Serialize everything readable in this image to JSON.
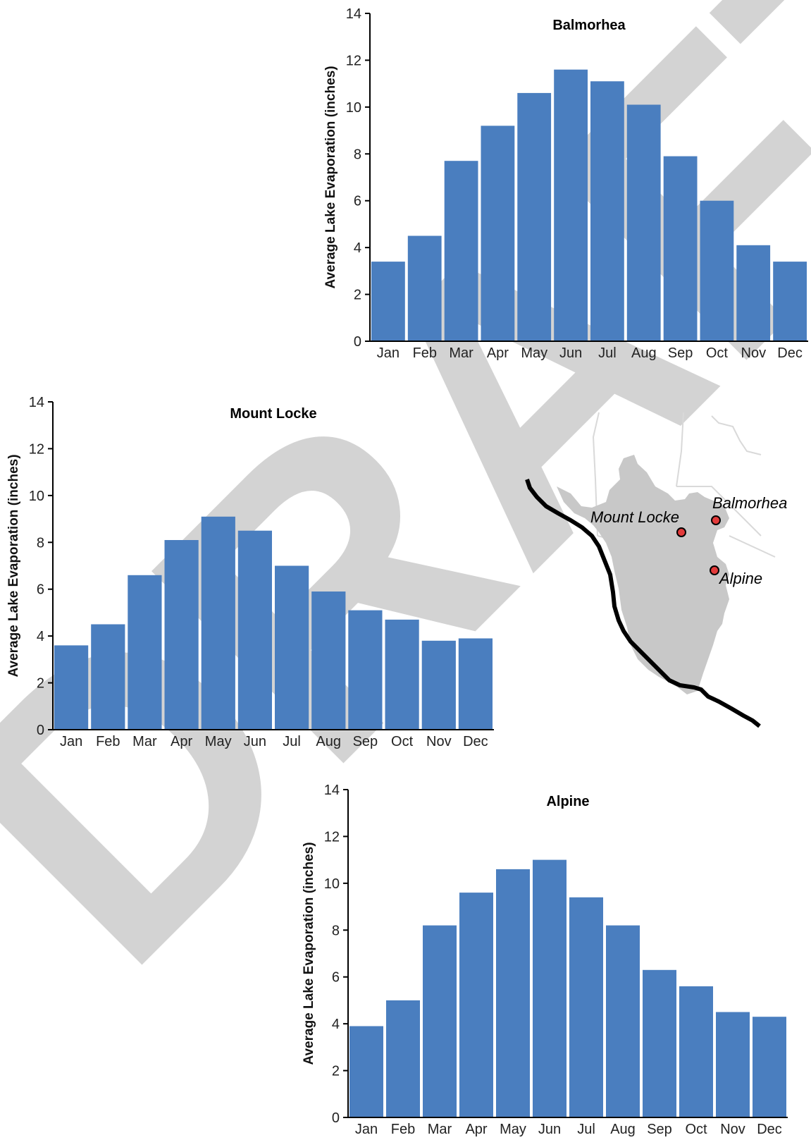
{
  "watermark": "DRAFT",
  "colors": {
    "bar": "#4a7ebf",
    "axis": "#000000",
    "map_land": "#c8c8c8",
    "map_border": "#d9d9d9",
    "river": "#000000",
    "marker_fill": "#e23b3b",
    "watermark": "#d3d3d3"
  },
  "map": {
    "labels": {
      "mount_locke": "Mount Locke",
      "balmorhea": "Balmorhea",
      "alpine": "Alpine"
    }
  },
  "chart_data": [
    {
      "id": "balmorhea",
      "type": "bar",
      "title": "Balmorhea",
      "xlabel": "",
      "ylabel": "Average Lake Evaporation (inches)",
      "ylim": [
        0,
        14
      ],
      "yticks": [
        0,
        2,
        4,
        6,
        8,
        10,
        12,
        14
      ],
      "categories": [
        "Jan",
        "Feb",
        "Mar",
        "Apr",
        "May",
        "Jun",
        "Jul",
        "Aug",
        "Sep",
        "Oct",
        "Nov",
        "Dec"
      ],
      "values": [
        3.4,
        4.5,
        7.7,
        9.2,
        10.6,
        11.6,
        11.1,
        10.1,
        7.9,
        6.0,
        4.1,
        3.4
      ]
    },
    {
      "id": "mount_locke",
      "type": "bar",
      "title": "Mount Locke",
      "xlabel": "",
      "ylabel": "Average Lake Evaporation (inches)",
      "ylim": [
        0,
        14
      ],
      "yticks": [
        0,
        2,
        4,
        6,
        8,
        10,
        12,
        14
      ],
      "categories": [
        "Jan",
        "Feb",
        "Mar",
        "Apr",
        "May",
        "Jun",
        "Jul",
        "Aug",
        "Sep",
        "Oct",
        "Nov",
        "Dec"
      ],
      "values": [
        3.6,
        4.5,
        6.6,
        8.1,
        9.1,
        8.5,
        7.0,
        5.9,
        5.1,
        4.7,
        3.8,
        3.9
      ]
    },
    {
      "id": "alpine",
      "type": "bar",
      "title": "Alpine",
      "xlabel": "",
      "ylabel": "Average Lake Evaporation (inches)",
      "ylim": [
        0,
        14
      ],
      "yticks": [
        0,
        2,
        4,
        6,
        8,
        10,
        12,
        14
      ],
      "categories": [
        "Jan",
        "Feb",
        "Mar",
        "Apr",
        "May",
        "Jun",
        "Jul",
        "Aug",
        "Sep",
        "Oct",
        "Nov",
        "Dec"
      ],
      "values": [
        3.9,
        5.0,
        8.2,
        9.6,
        10.6,
        11.0,
        9.4,
        8.2,
        6.3,
        5.6,
        4.5,
        4.3
      ]
    }
  ]
}
